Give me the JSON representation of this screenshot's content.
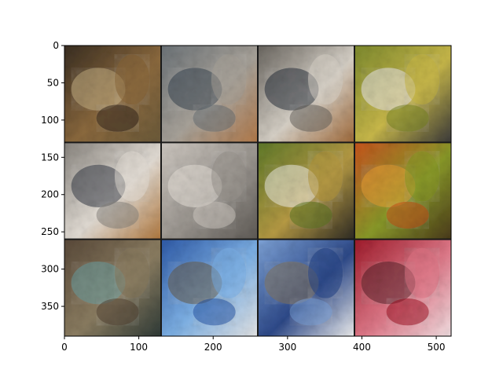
{
  "figure": {
    "grid_rows": 3,
    "grid_cols": 4,
    "x_ticks": [
      "0",
      "100",
      "200",
      "300",
      "400",
      "500"
    ],
    "y_ticks": [
      "0",
      "50",
      "100",
      "150",
      "200",
      "250",
      "300",
      "350"
    ],
    "tiles": [
      {
        "name": "tile-feathered-wing-closeup",
        "palette": [
          "#3a2e22",
          "#8c6a3e",
          "#c9b58a",
          "#6b5a3a"
        ]
      },
      {
        "name": "tile-bird-with-red-eye",
        "palette": [
          "#6d7479",
          "#a9a39a",
          "#3e4a56",
          "#b37a4a"
        ]
      },
      {
        "name": "tile-bird-head-red-eye",
        "palette": [
          "#6a6660",
          "#d8d2c8",
          "#2e3440",
          "#a06a3a"
        ]
      },
      {
        "name": "tile-white-loop-on-green",
        "palette": [
          "#7d8a2e",
          "#c8b84a",
          "#e9e6f0",
          "#3b3a3a"
        ]
      },
      {
        "name": "tile-bird-large-head",
        "palette": [
          "#8a8680",
          "#e4ded6",
          "#3a3f4a",
          "#b0783e"
        ]
      },
      {
        "name": "tile-pale-room-scene",
        "palette": [
          "#cfc9c2",
          "#9b9690",
          "#e8e2da",
          "#5e5a55"
        ]
      },
      {
        "name": "tile-white-shape-on-foliage",
        "palette": [
          "#5f7a2a",
          "#b69a44",
          "#efeee9",
          "#2d2a24"
        ]
      },
      {
        "name": "tile-orange-berries",
        "palette": [
          "#c8541e",
          "#8a9a2a",
          "#e9a23a",
          "#4a3a1a"
        ]
      },
      {
        "name": "tile-textured-rock-teal",
        "palette": [
          "#5a4a3a",
          "#8c7e62",
          "#6fa5a8",
          "#2e3a36"
        ]
      },
      {
        "name": "tile-blue-water-rock",
        "palette": [
          "#2e5aa8",
          "#7fb2e6",
          "#6b5e4a",
          "#e6e6e6"
        ]
      },
      {
        "name": "tile-blue-water-rock-2",
        "palette": [
          "#7fa4d8",
          "#2e4a8a",
          "#8a7a60",
          "#f0f0f0"
        ]
      },
      {
        "name": "tile-crimson-flower",
        "palette": [
          "#a01a2a",
          "#e07a8a",
          "#5a2a30",
          "#f2dfe2"
        ]
      }
    ]
  }
}
